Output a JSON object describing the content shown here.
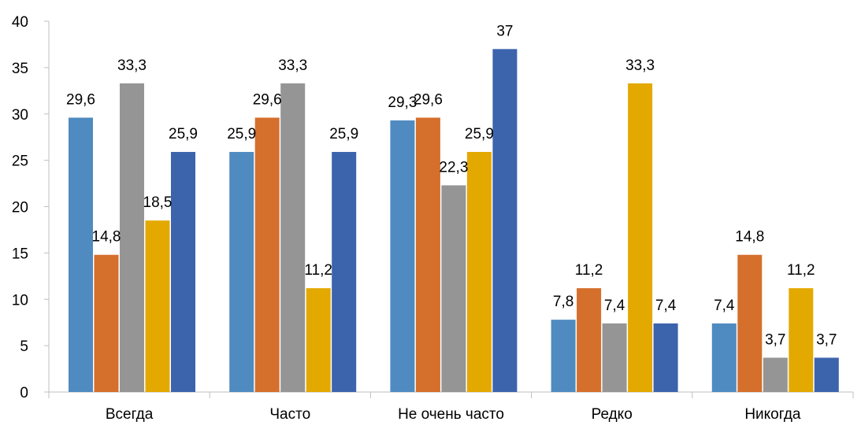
{
  "chart_data": {
    "type": "bar",
    "categories": [
      "Всегда",
      "Часто",
      "Не очень часто",
      "Редко",
      "Никогда"
    ],
    "series": [
      {
        "values": [
          29.6,
          25.9,
          29.3,
          7.8,
          7.4
        ],
        "labels": [
          "29,6",
          "25,9",
          "29,3",
          "7,8",
          "7,4"
        ],
        "color": "#4f8bc0"
      },
      {
        "values": [
          14.8,
          29.6,
          29.6,
          11.2,
          14.8
        ],
        "labels": [
          "14,8",
          "29,6",
          "29,6",
          "11,2",
          "14,8"
        ],
        "color": "#d56f2c"
      },
      {
        "values": [
          33.3,
          33.3,
          22.3,
          7.4,
          3.7
        ],
        "labels": [
          "33,3",
          "33,3",
          "22,3",
          "7,4",
          "3,7"
        ],
        "color": "#959595"
      },
      {
        "values": [
          18.5,
          11.2,
          25.9,
          33.3,
          11.2
        ],
        "labels": [
          "18,5",
          "11,2",
          "25,9",
          "33,3",
          "11,2"
        ],
        "color": "#e3a901"
      },
      {
        "values": [
          25.9,
          25.9,
          37,
          7.4,
          3.7
        ],
        "labels": [
          "25,9",
          "25,9",
          "37",
          "7,4",
          "3,7"
        ],
        "color": "#3c64ad"
      }
    ],
    "y_ticks": [
      "0",
      "5",
      "10",
      "15",
      "20",
      "25",
      "30",
      "35",
      "40"
    ],
    "ylim": [
      0,
      40
    ],
    "grid": false,
    "legend": "none"
  }
}
